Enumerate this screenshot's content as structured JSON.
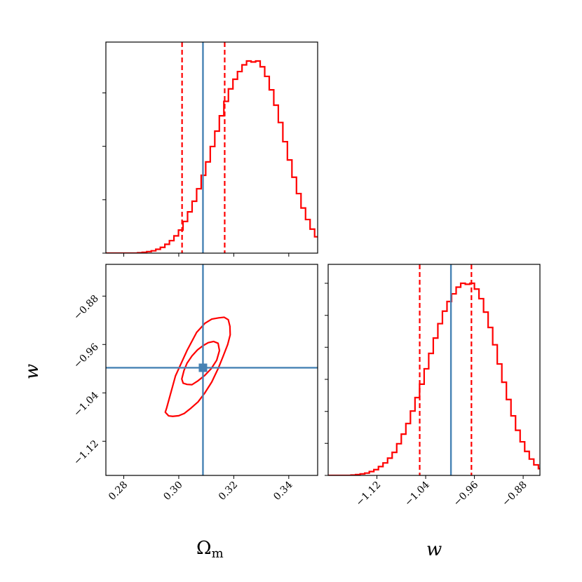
{
  "chart_data": [
    {
      "type": "histogram",
      "panel": "top-left",
      "parameter": "Omega_m",
      "xlim": [
        0.2735,
        0.3505
      ],
      "xticks": [
        0.28,
        0.3,
        0.32,
        0.34
      ],
      "truth": 0.3088,
      "quantiles": [
        0.3012,
        0.3167
      ],
      "bin_start": 0.2735,
      "bin_width": 0.00165,
      "counts": [
        0,
        0,
        0,
        0,
        0,
        0,
        0,
        0.002,
        0.004,
        0.008,
        0.012,
        0.02,
        0.03,
        0.046,
        0.065,
        0.09,
        0.12,
        0.165,
        0.215,
        0.27,
        0.335,
        0.405,
        0.475,
        0.555,
        0.635,
        0.715,
        0.79,
        0.855,
        0.905,
        0.945,
        0.98,
        1.0,
        0.995,
        1.0,
        0.97,
        0.92,
        0.85,
        0.77,
        0.68,
        0.58,
        0.485,
        0.395,
        0.31,
        0.235,
        0.175,
        0.125,
        0.085,
        0.055,
        0.035,
        0.02,
        0.012,
        0.006,
        0.003,
        0.001,
        0,
        0,
        0,
        0,
        0,
        0,
        0,
        0,
        0,
        0,
        0,
        0,
        0
      ],
      "color": "#ff0000",
      "truth_color": "#4682b4"
    },
    {
      "type": "contour",
      "panel": "bottom-left",
      "xparam": "Omega_m",
      "yparam": "w",
      "xlabel": "Ωm",
      "ylabel": "w",
      "xlim": [
        0.2735,
        0.3505
      ],
      "ylim": [
        -1.1765,
        -0.8275
      ],
      "xticks": [
        0.28,
        0.3,
        0.32,
        0.34
      ],
      "yticks": [
        -1.12,
        -1.04,
        -0.96,
        -0.88
      ],
      "xtick_labels": [
        "0.28",
        "0.30",
        "0.32",
        "0.34"
      ],
      "ytick_labels": [
        "−1.12",
        "−1.04",
        "−0.96",
        "−0.88"
      ],
      "truth": [
        0.3088,
        -0.9985
      ],
      "contours": [
        {
          "level": "inner",
          "points": [
            [
              0.303,
              -1.026
            ],
            [
              0.3048,
              -1.0265
            ],
            [
              0.307,
              -1.02
            ],
            [
              0.3095,
              -1.011
            ],
            [
              0.3118,
              -1.0
            ],
            [
              0.3138,
              -0.986
            ],
            [
              0.3148,
              -0.97
            ],
            [
              0.3143,
              -0.958
            ],
            [
              0.3127,
              -0.955
            ],
            [
              0.3107,
              -0.957
            ],
            [
              0.3088,
              -0.962
            ],
            [
              0.3068,
              -0.969
            ],
            [
              0.3048,
              -0.979
            ],
            [
              0.303,
              -0.991
            ],
            [
              0.3019,
              -1.003
            ],
            [
              0.3011,
              -1.017
            ],
            [
              0.3016,
              -1.024
            ],
            [
              0.303,
              -1.026
            ]
          ]
        },
        {
          "level": "outer",
          "points": [
            [
              0.2978,
              -1.0788
            ],
            [
              0.3,
              -1.0778
            ],
            [
              0.302,
              -1.074
            ],
            [
              0.3045,
              -1.065
            ],
            [
              0.307,
              -1.055
            ],
            [
              0.3095,
              -1.04
            ],
            [
              0.312,
              -1.022
            ],
            [
              0.3143,
              -1.0
            ],
            [
              0.316,
              -0.981
            ],
            [
              0.3178,
              -0.96
            ],
            [
              0.3187,
              -0.944
            ],
            [
              0.3186,
              -0.93
            ],
            [
              0.318,
              -0.919
            ],
            [
              0.3165,
              -0.915
            ],
            [
              0.3145,
              -0.916
            ],
            [
              0.312,
              -0.918
            ],
            [
              0.3095,
              -0.925
            ],
            [
              0.3065,
              -0.94
            ],
            [
              0.303,
              -0.97
            ],
            [
              0.2988,
              -1.012
            ],
            [
              0.2956,
              -1.065
            ],
            [
              0.2951,
              -1.072
            ],
            [
              0.2963,
              -1.078
            ],
            [
              0.2978,
              -1.0788
            ]
          ]
        }
      ],
      "color": "#ff0000",
      "truth_color": "#4682b4"
    },
    {
      "type": "histogram",
      "panel": "bottom-right",
      "parameter": "w",
      "xlabel": "w",
      "xlim": [
        -1.2,
        -0.8525
      ],
      "xticks": [
        -1.12,
        -1.04,
        -0.96,
        -0.88
      ],
      "xtick_labels": [
        "−1.12",
        "−1.04",
        "−0.96",
        "−0.88"
      ],
      "truth": -0.9985,
      "quantiles": [
        -1.0498,
        -0.9649
      ],
      "bin_start": -1.2,
      "bin_width": 0.0075,
      "counts": [
        0,
        0,
        0,
        0,
        0,
        0.002,
        0.004,
        0.008,
        0.012,
        0.02,
        0.03,
        0.046,
        0.065,
        0.09,
        0.12,
        0.165,
        0.215,
        0.27,
        0.335,
        0.405,
        0.475,
        0.555,
        0.635,
        0.715,
        0.79,
        0.855,
        0.905,
        0.945,
        0.98,
        1.0,
        0.995,
        1.0,
        0.97,
        0.92,
        0.85,
        0.77,
        0.68,
        0.58,
        0.485,
        0.395,
        0.31,
        0.235,
        0.175,
        0.125,
        0.085,
        0.055,
        0.035,
        0.02,
        0.012,
        0.006,
        0.003,
        0.001,
        0,
        0,
        0,
        0,
        0,
        0,
        0,
        0
      ],
      "color": "#ff0000",
      "truth_color": "#4682b4"
    }
  ],
  "labels": {
    "omega_main": "Ω",
    "omega_sub": "m",
    "w_x": "w",
    "w_y": "w"
  }
}
